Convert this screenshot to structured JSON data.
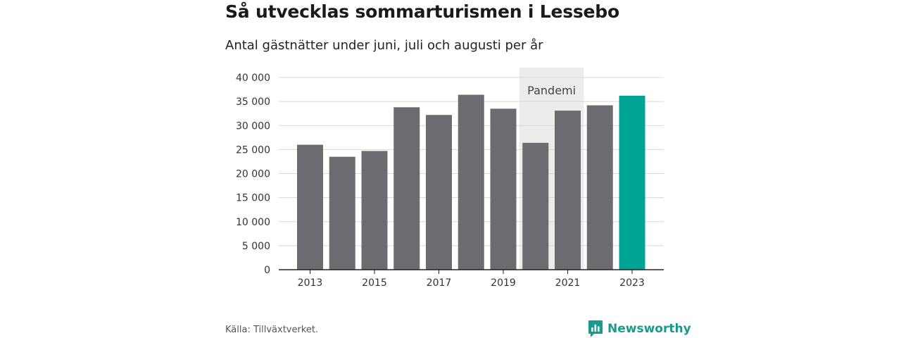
{
  "title": "Så utvecklas sommarturismen i Lessebo",
  "subtitle": "Antal gästnätter under juni, juli och augusti per år",
  "source": "Källa: Tillväxtverket.",
  "brand": {
    "name": "Newsworthy",
    "icon": "newsworthy-logo-icon",
    "color": "#1a9a8c"
  },
  "chart_data": {
    "type": "bar",
    "categories": [
      "2013",
      "2014",
      "2015",
      "2016",
      "2017",
      "2018",
      "2019",
      "2020",
      "2021",
      "2022",
      "2023"
    ],
    "values": [
      26000,
      23500,
      24700,
      33800,
      32200,
      36400,
      33500,
      26400,
      33100,
      34200,
      36200
    ],
    "x_tick_labels": [
      "2013",
      "2015",
      "2017",
      "2019",
      "2021",
      "2023"
    ],
    "y_ticks": [
      0,
      5000,
      10000,
      15000,
      20000,
      25000,
      30000,
      35000,
      40000
    ],
    "y_tick_labels": [
      "0",
      "5 000",
      "10 000",
      "15 000",
      "20 000",
      "25 000",
      "30 000",
      "35 000",
      "40 000"
    ],
    "ylim": [
      0,
      40000
    ],
    "xlabel": "",
    "ylabel": "",
    "grid": true,
    "colors": {
      "default": "#6c6b70",
      "highlight": "#00a497",
      "highlight_category": "2023",
      "annotation_band": "#ececec"
    },
    "annotations": [
      {
        "label": "Pandemi",
        "start": "2020",
        "end": "2021"
      }
    ]
  }
}
